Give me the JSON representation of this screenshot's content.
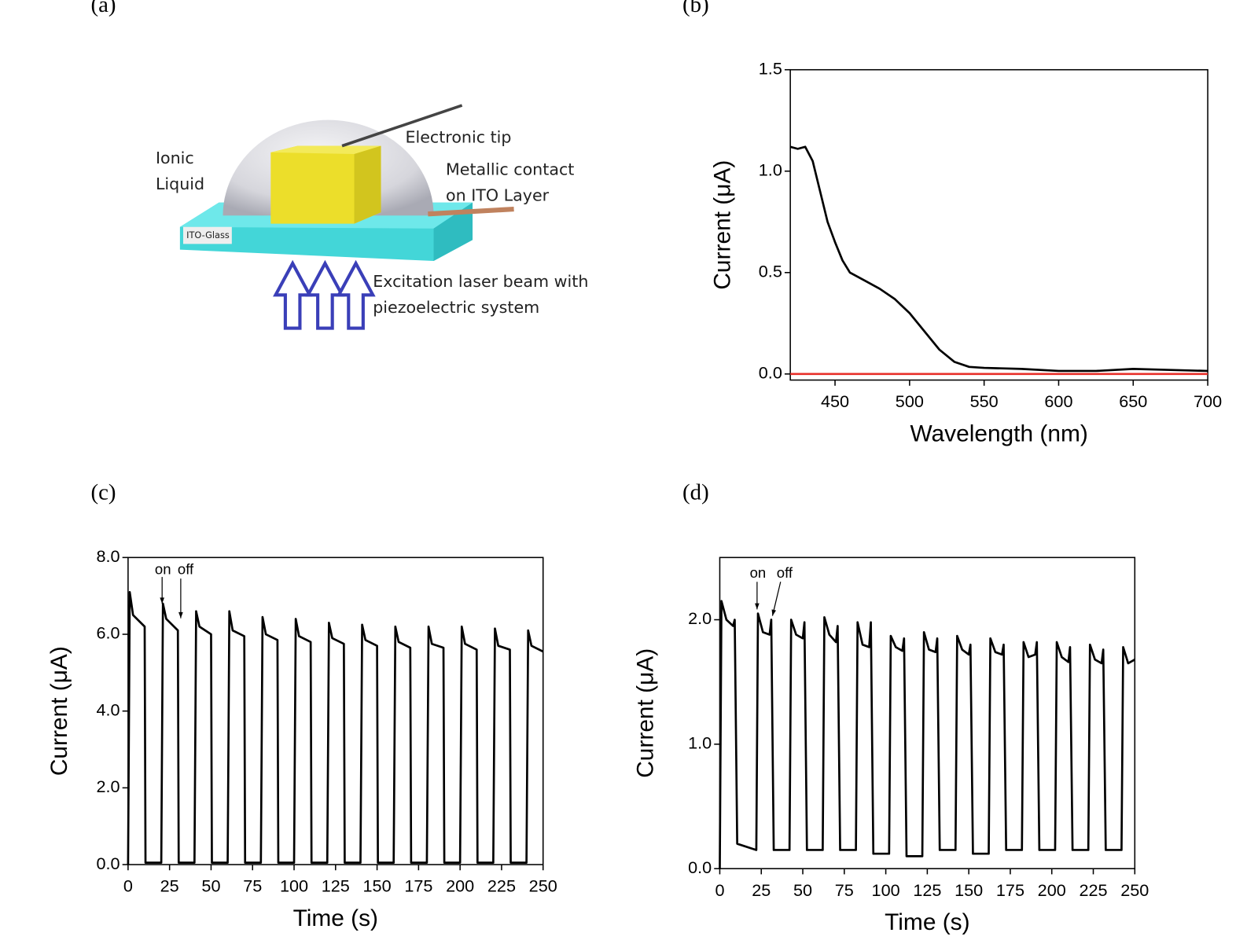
{
  "diagram": {
    "panel_label": "(a)",
    "labels": {
      "ionic_liquid": [
        "Ionic",
        "Liquid"
      ],
      "electronic_tip": "Electronic tip",
      "metallic_contact": [
        "Metallic contact",
        "on ITO Layer"
      ],
      "ito_glass": "ITO-Glass",
      "laser": [
        "Excitation laser beam with",
        "piezoelectric system"
      ]
    }
  },
  "chart_data": [
    {
      "type": "line",
      "panel_label": "(b)",
      "x_label": "Wavelength (nm)",
      "y_label": "Current (μA)",
      "x": [
        420,
        425,
        430,
        435,
        440,
        445,
        450,
        455,
        460,
        470,
        480,
        490,
        500,
        510,
        520,
        530,
        540,
        550,
        575,
        600,
        625,
        650,
        675,
        700
      ],
      "series": [
        {
          "color": "#000000",
          "values": [
            1.12,
            1.11,
            1.12,
            1.05,
            0.9,
            0.75,
            0.65,
            0.56,
            0.5,
            0.46,
            0.42,
            0.37,
            0.3,
            0.21,
            0.12,
            0.06,
            0.035,
            0.03,
            0.025,
            0.015,
            0.015,
            0.025,
            0.02,
            0.015
          ]
        },
        {
          "color": "#e8302a",
          "values": [
            0,
            0,
            0,
            0,
            0,
            0,
            0,
            0,
            0,
            0,
            0,
            0,
            0,
            0,
            0,
            0,
            0,
            0,
            0,
            0,
            0,
            0,
            0,
            0
          ]
        }
      ],
      "xlim": [
        420,
        700
      ],
      "xticks": [
        450,
        500,
        550,
        600,
        650,
        700
      ],
      "ylim": [
        -0.03,
        1.5
      ],
      "yticks": [
        {
          "value": 0,
          "label": "0.0"
        },
        {
          "value": 0.5,
          "label": "0.5"
        },
        {
          "value": 1,
          "label": "1.0"
        },
        1.5
      ]
    },
    {
      "type": "line",
      "panel_label": "(c)",
      "x_label": "Time (s)",
      "y_label": "Current (μA)",
      "annotations": [
        "on",
        "off"
      ],
      "x": [
        0,
        1,
        3,
        10,
        10.5,
        20,
        21,
        23,
        30,
        30.5,
        40,
        41,
        43,
        50,
        50.5,
        60,
        61,
        63,
        70,
        70.5,
        80,
        81,
        83,
        90,
        90.5,
        100,
        101,
        103,
        110,
        110.5,
        120,
        121,
        123,
        130,
        130.5,
        140,
        141,
        143,
        150,
        150.5,
        160,
        161,
        163,
        170,
        170.5,
        180,
        181,
        183,
        190,
        190.5,
        200,
        201,
        203,
        210,
        210.5,
        220,
        221,
        223,
        230,
        230.5,
        240,
        241,
        243,
        250
      ],
      "series": [
        {
          "color": "#000000",
          "values": [
            0,
            7.1,
            6.5,
            6.2,
            0.05,
            0.05,
            6.8,
            6.4,
            6.1,
            0.05,
            0.05,
            6.6,
            6.2,
            6.0,
            0.05,
            0.05,
            6.6,
            6.1,
            5.95,
            0.05,
            0.05,
            6.45,
            6.0,
            5.85,
            0.05,
            0.05,
            6.4,
            5.95,
            5.8,
            0.05,
            0.05,
            6.3,
            5.9,
            5.75,
            0.05,
            0.05,
            6.25,
            5.85,
            5.7,
            0.05,
            0.05,
            6.2,
            5.8,
            5.65,
            0.05,
            0.05,
            6.2,
            5.75,
            5.65,
            0.05,
            0.05,
            6.2,
            5.75,
            5.6,
            0.05,
            0.05,
            6.15,
            5.7,
            5.6,
            0.05,
            0.05,
            6.1,
            5.7,
            5.55
          ]
        }
      ],
      "xlim": [
        0,
        250
      ],
      "xticks": [
        0,
        25,
        50,
        75,
        100,
        125,
        150,
        175,
        200,
        225,
        250
      ],
      "ylim": [
        0,
        8
      ],
      "yticks": [
        {
          "value": 0,
          "label": "0.0"
        },
        {
          "value": 2,
          "label": "2.0"
        },
        {
          "value": 4,
          "label": "4.0"
        },
        {
          "value": 6,
          "label": "6.0"
        },
        {
          "value": 8,
          "label": "8.0"
        }
      ]
    },
    {
      "type": "line",
      "panel_label": "(d)",
      "x_label": "Time (s)",
      "y_label": "Current (μA)",
      "annotations": [
        "on",
        "off"
      ],
      "x": [
        0,
        1,
        4,
        8,
        9,
        10.5,
        22,
        23,
        26,
        30,
        31,
        32.5,
        42,
        43,
        46,
        50,
        51,
        52.5,
        62,
        63,
        66,
        70,
        71,
        72.5,
        82,
        83,
        86,
        90,
        91,
        92.5,
        102,
        103,
        106,
        110,
        111,
        112.5,
        122,
        123,
        126,
        130,
        131,
        132.5,
        142,
        143,
        146,
        150,
        151,
        152.5,
        162,
        163,
        166,
        170,
        171,
        172.5,
        182,
        183,
        186,
        190,
        191,
        192.5,
        202,
        203,
        206,
        210,
        211,
        212.5,
        222,
        223,
        226,
        230,
        231,
        232.5,
        242,
        243,
        246,
        250
      ],
      "series": [
        {
          "color": "#000000",
          "values": [
            0,
            2.15,
            2.0,
            1.95,
            2.0,
            0.2,
            0.15,
            2.05,
            1.9,
            1.88,
            2.0,
            0.15,
            0.15,
            2.0,
            1.88,
            1.85,
            1.98,
            0.15,
            0.15,
            2.02,
            1.88,
            1.82,
            1.95,
            0.15,
            0.15,
            1.98,
            1.8,
            1.78,
            1.98,
            0.12,
            0.12,
            1.87,
            1.78,
            1.75,
            1.85,
            0.1,
            0.1,
            1.9,
            1.76,
            1.74,
            1.85,
            0.15,
            0.15,
            1.87,
            1.76,
            1.72,
            1.8,
            0.12,
            0.12,
            1.85,
            1.74,
            1.72,
            1.8,
            0.15,
            0.15,
            1.82,
            1.7,
            1.72,
            1.82,
            0.15,
            0.15,
            1.82,
            1.7,
            1.66,
            1.78,
            0.15,
            0.15,
            1.8,
            1.68,
            1.65,
            1.76,
            0.15,
            0.15,
            1.78,
            1.65,
            1.68
          ]
        }
      ],
      "xlim": [
        0,
        250
      ],
      "xticks": [
        0,
        25,
        50,
        75,
        100,
        125,
        150,
        175,
        200,
        225,
        250
      ],
      "ylim": [
        0,
        2.5
      ],
      "yticks": [
        {
          "value": 0,
          "label": "0.0"
        },
        {
          "value": 1,
          "label": "1.0"
        },
        {
          "value": 2,
          "label": "2.0"
        }
      ]
    }
  ]
}
